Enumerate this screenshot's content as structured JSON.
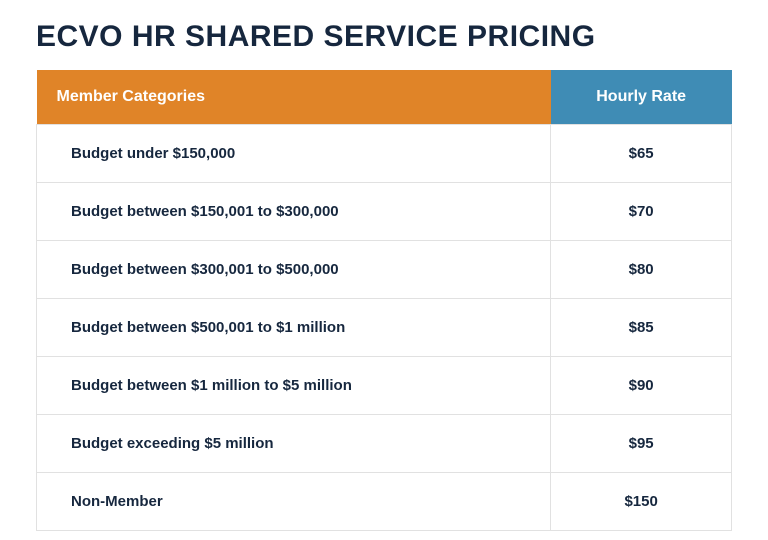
{
  "title": "ECVO HR SHARED SERVICE PRICING",
  "title_color": "#16273e",
  "title_fontsize": 30,
  "background_color": "#ffffff",
  "table": {
    "type": "table",
    "border_color": "#e1e1e1",
    "row_background": "#ffffff",
    "cell_fontsize": 15,
    "cell_fontweight": 700,
    "cell_text_color": "#16273e",
    "columns": [
      {
        "key": "category",
        "label": "Member Categories",
        "width_pct": 74,
        "header_bg": "#e08428",
        "header_text_color": "#ffffff",
        "align": "left"
      },
      {
        "key": "rate",
        "label": "Hourly Rate",
        "width_pct": 26,
        "header_bg": "#3f8cb5",
        "header_text_color": "#ffffff",
        "align": "center"
      }
    ],
    "rows": [
      {
        "category": "Budget under $150,000",
        "rate": "$65"
      },
      {
        "category": "Budget between $150,001 to $300,000",
        "rate": "$70"
      },
      {
        "category": "Budget between $300,001 to $500,000",
        "rate": "$80"
      },
      {
        "category": "Budget between $500,001 to $1 million",
        "rate": "$85"
      },
      {
        "category": "Budget between $1 million to $5 million",
        "rate": "$90"
      },
      {
        "category": "Budget exceeding $5 million",
        "rate": "$95"
      },
      {
        "category": "Non-Member",
        "rate": "$150"
      }
    ]
  }
}
